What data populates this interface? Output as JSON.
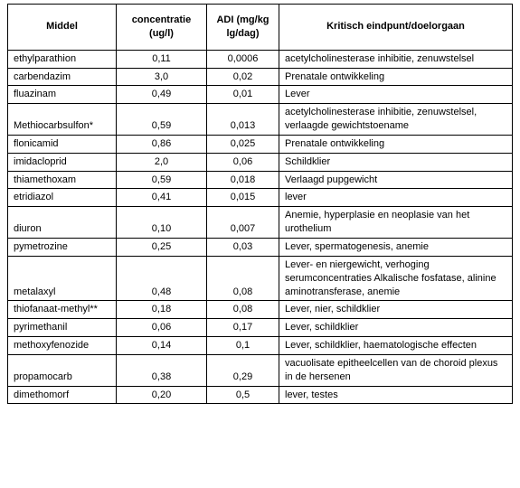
{
  "table": {
    "headers": {
      "middel": "Middel",
      "concentratie": "concentratie (ug/l)",
      "adi": "ADI (mg/kg lg/dag)",
      "kritisch": "Kritisch eindpunt/doelorgaan"
    },
    "rows": [
      {
        "middel": "ethylparathion",
        "conc": "0,11",
        "adi": "0,0006",
        "crit": "acetylcholinesterase inhibitie, zenuwstelsel"
      },
      {
        "middel": "carbendazim",
        "conc": "3,0",
        "adi": "0,02",
        "crit": "Prenatale ontwikkeling"
      },
      {
        "middel": "fluazinam",
        "conc": "0,49",
        "adi": "0,01",
        "crit": "Lever"
      },
      {
        "middel": "Methiocarbsulfon*",
        "conc": "0,59",
        "adi": "0,013",
        "crit": "acetylcholinesterase inhibitie, zenuwstelsel, verlaagde gewichtstoename"
      },
      {
        "middel": "flonicamid",
        "conc": "0,86",
        "adi": "0,025",
        "crit": "Prenatale ontwikkeling"
      },
      {
        "middel": "imidacloprid",
        "conc": "2,0",
        "adi": "0,06",
        "crit": "Schildklier"
      },
      {
        "middel": "thiamethoxam",
        "conc": "0,59",
        "adi": "0,018",
        "crit": "Verlaagd pupgewicht"
      },
      {
        "middel": "etridiazol",
        "conc": "0,41",
        "adi": "0,015",
        "crit": "lever"
      },
      {
        "middel": "diuron",
        "conc": "0,10",
        "adi": "0,007",
        "crit": "Anemie, hyperplasie en neoplasie van het urothelium"
      },
      {
        "middel": "pymetrozine",
        "conc": "0,25",
        "adi": "0,03",
        "crit": "Lever, spermatogenesis, anemie"
      },
      {
        "middel": "metalaxyl",
        "conc": "0,48",
        "adi": "0,08",
        "crit": "Lever- en niergewicht, verhoging serumconcentraties Alkalische fosfatase, alinine aminotransferase, anemie"
      },
      {
        "middel": "thiofanaat-methyl**",
        "conc": "0,18",
        "adi": "0,08",
        "crit": "Lever, nier, schildklier"
      },
      {
        "middel": "pyrimethanil",
        "conc": "0,06",
        "adi": "0,17",
        "crit": "Lever, schildklier"
      },
      {
        "middel": "methoxyfenozide",
        "conc": "0,14",
        "adi": "0,1",
        "crit": "Lever, schildklier, haematologische effecten"
      },
      {
        "middel": "propamocarb",
        "conc": "0,38",
        "adi": "0,29",
        "crit": "vacuolisate epitheelcellen van de choroid plexus in de hersenen"
      },
      {
        "middel": "dimethomorf",
        "conc": "0,20",
        "adi": "0,5",
        "crit": "lever, testes"
      }
    ]
  }
}
